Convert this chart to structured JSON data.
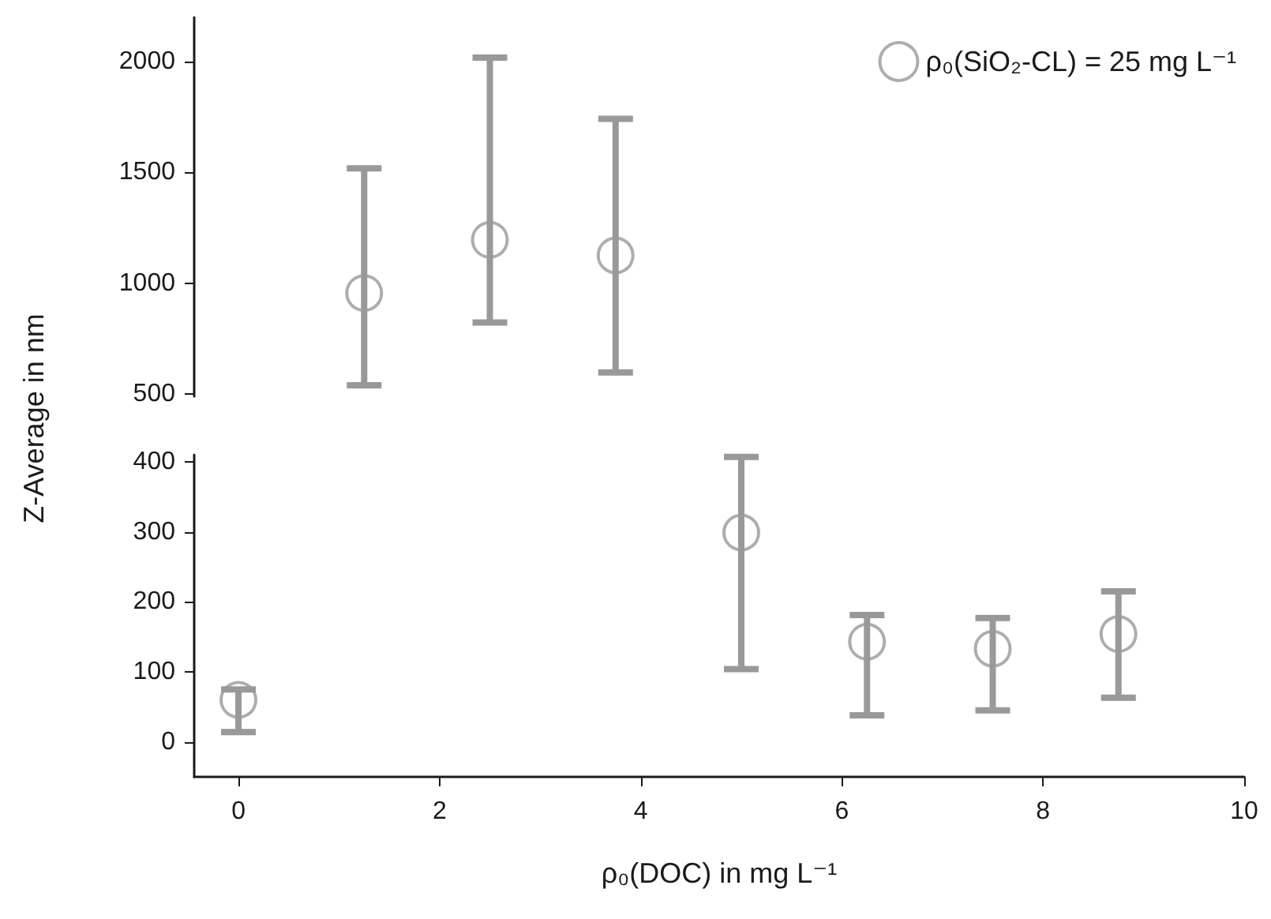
{
  "chart_data": [
    {
      "type": "scatter",
      "xlim": [
        -0.44,
        10
      ],
      "xticks": [
        0,
        2,
        4,
        6,
        8,
        10
      ],
      "ylim": [
        490,
        2200
      ],
      "yticks": [
        500,
        1000,
        1500,
        2000
      ],
      "tick_labels": "y",
      "legend": "top right",
      "marker": "circle",
      "series": [
        {
          "name": "ρ₀(SiO₂-CL) = 25 mg L⁻¹",
          "color": "#999999",
          "x": [
            1.25,
            2.5,
            3.75
          ],
          "values": [
            956,
            1196,
            1126
          ],
          "errors": [
            [
              540,
              1519
            ],
            [
              823,
              2018
            ],
            [
              598,
              1742
            ]
          ]
        }
      ]
    },
    {
      "type": "scatter",
      "xlim": [
        -0.44,
        10
      ],
      "xticks": [
        0,
        2,
        4,
        6,
        8,
        10
      ],
      "ylim": [
        -50,
        410
      ],
      "yticks": [
        0,
        100,
        200,
        300,
        400
      ],
      "xlabel": "ρ₀(DOC) in mg L⁻¹",
      "ylabel": "Z-Average in nm",
      "marker": "circle",
      "series": [
        {
          "color": "#999999",
          "x": [
            0,
            5,
            6.25,
            7.5,
            8.75
          ],
          "values": [
            60,
            299,
            143,
            133,
            154
          ],
          "errors": [
            [
              14,
              75
            ],
            [
              104,
              407
            ],
            [
              38,
              181
            ],
            [
              45,
              177
            ],
            [
              63,
              215
            ]
          ]
        }
      ]
    }
  ]
}
